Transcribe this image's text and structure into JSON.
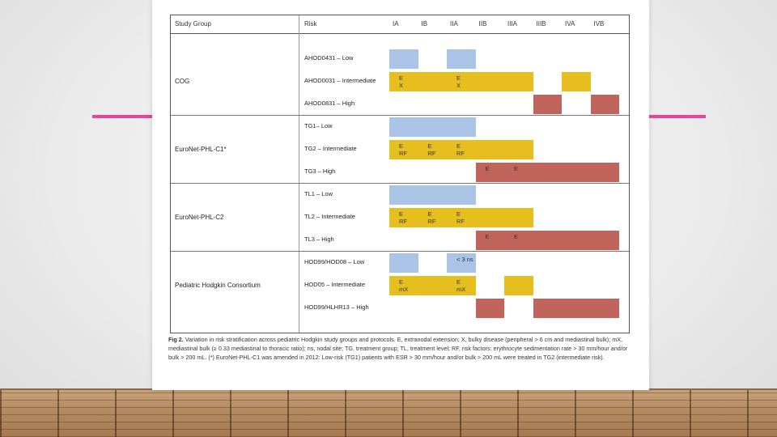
{
  "figure": {
    "headers": {
      "study_group": "Study Group",
      "risk": "Risk",
      "stages": [
        "IA",
        "IB",
        "IIA",
        "IIB",
        "IIIA",
        "IIIB",
        "IVA",
        "IVB"
      ]
    },
    "groups": [
      {
        "name": "COG",
        "rows": [
          {
            "risk": "AHOD0431 – Low",
            "cells": [
              "blue",
              "none",
              "blue",
              "none",
              "none",
              "none",
              "none",
              "none"
            ],
            "labels": {}
          },
          {
            "risk": "AHOD0031 – Intermediate",
            "cells": [
              "yellow",
              "yellow",
              "yellow",
              "yellow",
              "yellow",
              "none",
              "yellow",
              "none"
            ],
            "labels": {
              "0": "E\nX",
              "2": "E\nX"
            }
          },
          {
            "risk": "AHOD0831 – High",
            "cells": [
              "none",
              "none",
              "none",
              "none",
              "none",
              "red",
              "none",
              "red"
            ],
            "labels": {}
          }
        ]
      },
      {
        "name": "EuroNet-PHL-C1*",
        "rows": [
          {
            "risk": "TG1– Low",
            "cells": [
              "blue",
              "blue",
              "blue",
              "none",
              "none",
              "none",
              "none",
              "none"
            ],
            "labels": {}
          },
          {
            "risk": "TG2 – Intermediate",
            "cells": [
              "yellow",
              "yellow",
              "yellow",
              "yellow",
              "yellow",
              "none",
              "none",
              "none"
            ],
            "labels": {
              "0": "E\nRF",
              "1": "E\nRF",
              "2": "E\nRF"
            }
          },
          {
            "risk": "TG3 – High",
            "cells": [
              "none",
              "none",
              "none",
              "red",
              "red",
              "red",
              "red",
              "red"
            ],
            "labels": {
              "3": "E",
              "4": "E"
            }
          }
        ]
      },
      {
        "name": "EuroNet-PHL-C2",
        "rows": [
          {
            "risk": "TL1 – Low",
            "cells": [
              "blue",
              "blue",
              "blue",
              "none",
              "none",
              "none",
              "none",
              "none"
            ],
            "labels": {}
          },
          {
            "risk": "TL2 – Intermediate",
            "cells": [
              "yellow",
              "yellow",
              "yellow",
              "yellow",
              "yellow",
              "none",
              "none",
              "none"
            ],
            "labels": {
              "0": "E\nRF",
              "1": "E\nRF",
              "2": "E\nRF"
            }
          },
          {
            "risk": "TL3 – High",
            "cells": [
              "none",
              "none",
              "none",
              "red",
              "red",
              "red",
              "red",
              "red"
            ],
            "labels": {
              "3": "E",
              "4": "E"
            }
          }
        ]
      },
      {
        "name": "Pediatric Hodgkin Consortium",
        "rows": [
          {
            "risk": "HOD99/HOD08 – Low",
            "cells": [
              "blue",
              "none",
              "blue",
              "none",
              "none",
              "none",
              "none",
              "none"
            ],
            "labels": {
              "2": "< 3 ns"
            }
          },
          {
            "risk": "HOD05 – Intermediate",
            "cells": [
              "yellow",
              "yellow",
              "yellow",
              "none",
              "yellow",
              "none",
              "none",
              "none"
            ],
            "labels": {
              "0": "E\nmX",
              "2": "E\nmX"
            }
          },
          {
            "risk": "HOD99/HLHR13 – High",
            "cells": [
              "none",
              "none",
              "none",
              "red",
              "none",
              "red",
              "red",
              "red"
            ],
            "labels": {}
          }
        ]
      }
    ]
  },
  "caption": {
    "label": "Fig 2.",
    "text": "Variation in risk stratification across pediatric Hodgkin study groups and protocols. E, extranodal extension; X, bulky disease (peripheral > 6 cm and mediastinal bulk); mX, mediastinal bulk (≥ 0.33 mediastinal to thoracic ratio); ns, nodal site; TG, treatment group; TL, treatment level; RF, risk factors: erythrocyte sedimentation rate > 30 mm/hour and/or bulk > 200 mL. (*) EuroNet-PHL-C1 was amended in 2012: Low-risk (TG1) patients with ESR > 30 mm/hour and/or bulk > 200 mL were treated in TG2 (intermediate risk)."
  },
  "colors": {
    "low": "#a9c4e6",
    "intermediate": "#e6bf1f",
    "high": "#c0645c",
    "accent_line": "#e8459a"
  }
}
